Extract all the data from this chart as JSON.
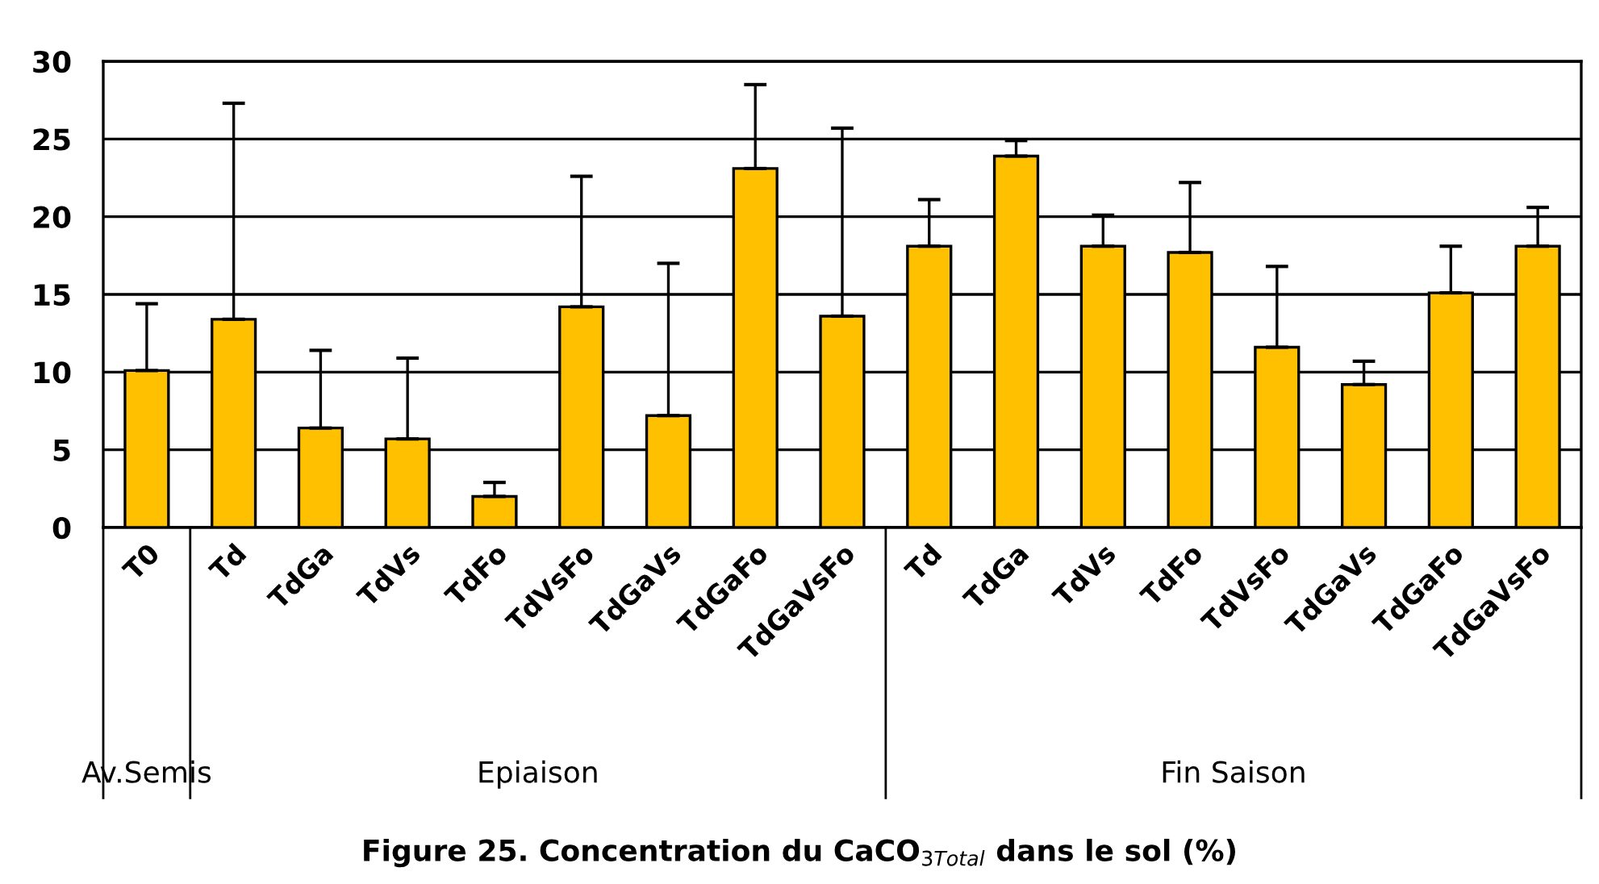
{
  "chart_data": {
    "type": "bar",
    "title": "Figure 25. Concentration du CaCO$_{3Total}$ dans le sol (%)",
    "categories": [
      "T0",
      "Td",
      "TdGa",
      "TdVs",
      "TdFo",
      "TdVsFo",
      "TdGaVs",
      "TdGaFo",
      "TdGaVsFo",
      "Td",
      "TdGa",
      "TdVs",
      "TdFo",
      "TdVsFo",
      "TdGaVs",
      "TdGaFo",
      "TdGaVsFo"
    ],
    "values": [
      10.1,
      13.4,
      6.4,
      5.7,
      2.0,
      14.2,
      7.2,
      23.1,
      13.6,
      18.1,
      23.9,
      18.1,
      17.7,
      11.6,
      9.2,
      15.1,
      18.1
    ],
    "errors": [
      [
        10.1,
        14.4
      ],
      [
        13.4,
        27.3
      ],
      [
        6.4,
        11.4
      ],
      [
        5.7,
        10.9
      ],
      [
        2.0,
        2.9
      ],
      [
        14.2,
        22.6
      ],
      [
        7.2,
        17.0
      ],
      [
        23.1,
        28.5
      ],
      [
        13.6,
        25.7
      ],
      [
        18.1,
        21.1
      ],
      [
        23.9,
        24.9
      ],
      [
        18.1,
        20.1
      ],
      [
        17.7,
        22.2
      ],
      [
        11.6,
        16.8
      ],
      [
        9.2,
        10.7
      ],
      [
        15.1,
        18.1
      ],
      [
        18.1,
        20.6
      ]
    ],
    "color": "#ffc000",
    "ylim": [
      0,
      30
    ],
    "yticks": [
      0,
      5,
      10,
      15,
      20,
      25,
      30
    ],
    "grid": "y",
    "annotations": [
      "Av.Semis",
      "Epiaison",
      "Fin Saison"
    ]
  }
}
